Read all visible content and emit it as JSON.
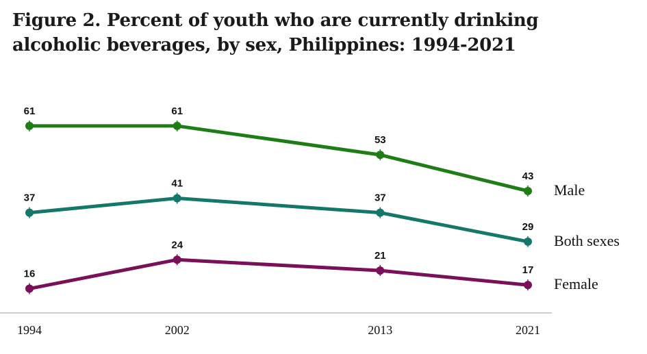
{
  "title_lines": [
    "Figure 2. Percent of youth who are currently drinking",
    "alcoholic beverages, by sex, Philippines: 1994-2021"
  ],
  "colors": {
    "male": "#1e7d14",
    "both": "#13786a",
    "female": "#7a0f5a",
    "axis": "#999999"
  },
  "chart_data": {
    "type": "line",
    "title": "Figure 2. Percent of youth who are currently drinking alcoholic beverages, by sex, Philippines: 1994-2021",
    "x": [
      "1994",
      "2002",
      "2013",
      "2021"
    ],
    "x_years": [
      1994,
      2002,
      2013,
      2021
    ],
    "ylim": [
      0,
      70
    ],
    "grid": false,
    "legend": "right",
    "series": [
      {
        "name": "Male",
        "key": "male",
        "values": [
          61,
          61,
          53,
          43
        ]
      },
      {
        "name": "Both sexes",
        "key": "both",
        "values": [
          37,
          41,
          37,
          29
        ]
      },
      {
        "name": "Female",
        "key": "female",
        "values": [
          16,
          24,
          21,
          17
        ]
      }
    ]
  }
}
